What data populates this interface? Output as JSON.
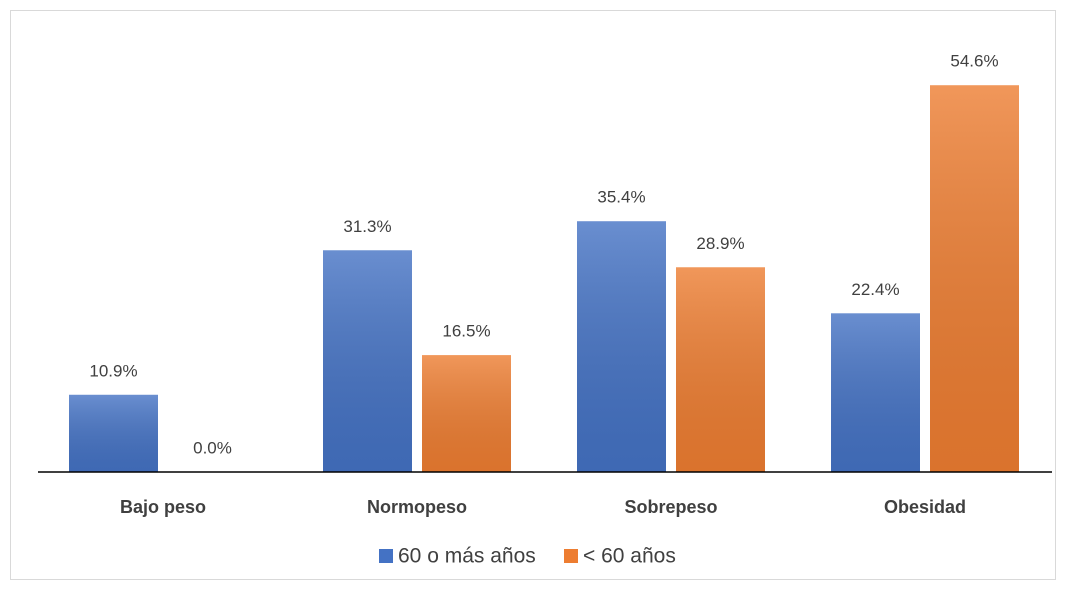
{
  "chart_data": {
    "type": "bar",
    "categories": [
      "Bajo peso",
      "Normopeso",
      "Sobrepeso",
      "Obesidad"
    ],
    "series": [
      {
        "name": "60 o más años",
        "color": "#4472c4",
        "values": [
          10.9,
          31.3,
          35.4,
          22.4
        ],
        "value_labels": [
          "10.9%",
          "31.3%",
          "35.4%",
          "22.4%"
        ]
      },
      {
        "name": "< 60 años",
        "color": "#ed7d31",
        "values": [
          0.0,
          16.5,
          28.9,
          54.6
        ],
        "value_labels": [
          "0.0%",
          "16.5%",
          "28.9%",
          "54.6%"
        ]
      }
    ],
    "ylim": [
      0,
      60
    ],
    "legend": "bottom"
  }
}
